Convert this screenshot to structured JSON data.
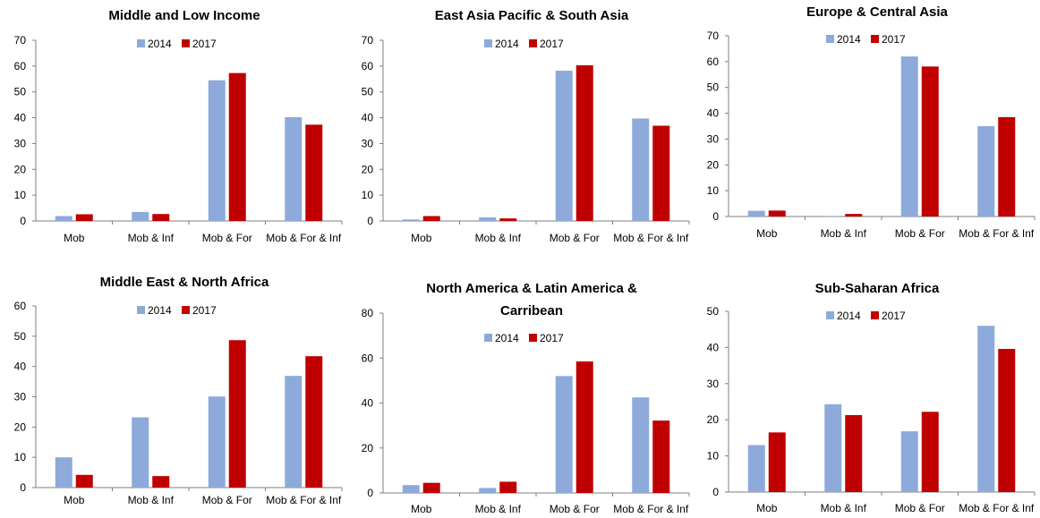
{
  "colors": {
    "s2014": "#8eaadb",
    "s2017": "#c00000",
    "axis": "#7f7f7f"
  },
  "chart_data": [
    {
      "type": "bar",
      "title": [
        "Middle and Low Income"
      ],
      "categories": [
        "Mob",
        "Mob & Inf",
        "Mob & For",
        "Mob & For & Inf"
      ],
      "series": [
        {
          "name": "2014",
          "values": [
            1.9,
            3.5,
            54.5,
            40.2
          ]
        },
        {
          "name": "2017",
          "values": [
            2.6,
            2.7,
            57.3,
            37.3
          ]
        }
      ],
      "ylim": [
        0,
        70
      ],
      "yticks": [
        0,
        10,
        20,
        30,
        40,
        50,
        60,
        70
      ],
      "legend": "top-center",
      "grid": false
    },
    {
      "type": "bar",
      "title": [
        "East Asia Pacific & South Asia"
      ],
      "categories": [
        "Mob",
        "Mob & Inf",
        "Mob & For",
        "Mob & For & Inf"
      ],
      "series": [
        {
          "name": "2014",
          "values": [
            0.6,
            1.4,
            58.2,
            39.7
          ]
        },
        {
          "name": "2017",
          "values": [
            1.9,
            1.0,
            60.3,
            36.9
          ]
        }
      ],
      "ylim": [
        0,
        70
      ],
      "yticks": [
        0,
        10,
        20,
        30,
        40,
        50,
        60,
        70
      ],
      "legend": "top-center",
      "grid": false
    },
    {
      "type": "bar",
      "title": [
        "Europe & Central Asia"
      ],
      "categories": [
        "Mob",
        "Mob & Inf",
        "Mob & For",
        "Mob & For & Inf"
      ],
      "series": [
        {
          "name": "2014",
          "values": [
            2.2,
            0.2,
            62.0,
            35.0
          ]
        },
        {
          "name": "2017",
          "values": [
            2.3,
            1.0,
            58.1,
            38.5
          ]
        }
      ],
      "ylim": [
        0,
        70
      ],
      "yticks": [
        0,
        10,
        20,
        30,
        40,
        50,
        60,
        70
      ],
      "legend": "top-center",
      "grid": false
    },
    {
      "type": "bar",
      "title": [
        "Middle East & North Africa"
      ],
      "categories": [
        "Mob",
        "Mob & Inf",
        "Mob & For",
        "Mob & For & Inf"
      ],
      "series": [
        {
          "name": "2014",
          "values": [
            10.0,
            23.2,
            30.1,
            36.9
          ]
        },
        {
          "name": "2017",
          "values": [
            4.2,
            3.8,
            48.7,
            43.4
          ]
        }
      ],
      "ylim": [
        0,
        60
      ],
      "yticks": [
        0,
        10,
        20,
        30,
        40,
        50,
        60
      ],
      "legend": "top-center",
      "grid": false
    },
    {
      "type": "bar",
      "title": [
        "North America & Latin America &",
        "Carribean"
      ],
      "categories": [
        "Mob",
        "Mob & Inf",
        "Mob & For",
        "Mob & For & Inf"
      ],
      "series": [
        {
          "name": "2014",
          "values": [
            3.5,
            2.2,
            52.0,
            42.5
          ]
        },
        {
          "name": "2017",
          "values": [
            4.5,
            5.0,
            58.5,
            32.2
          ]
        }
      ],
      "ylim": [
        0,
        80
      ],
      "yticks": [
        0,
        20,
        40,
        60,
        80
      ],
      "legend": "top-center",
      "grid": false
    },
    {
      "type": "bar",
      "title": [
        "Sub-Saharan Africa"
      ],
      "categories": [
        "Mob",
        "Mob & Inf",
        "Mob & For",
        "Mob & For & Inf"
      ],
      "series": [
        {
          "name": "2014",
          "values": [
            13.0,
            24.3,
            16.8,
            46.0
          ]
        },
        {
          "name": "2017",
          "values": [
            16.5,
            21.3,
            22.2,
            39.6
          ]
        }
      ],
      "ylim": [
        0,
        50
      ],
      "yticks": [
        0,
        10,
        20,
        30,
        40,
        50
      ],
      "legend": "top-center",
      "grid": false
    }
  ]
}
